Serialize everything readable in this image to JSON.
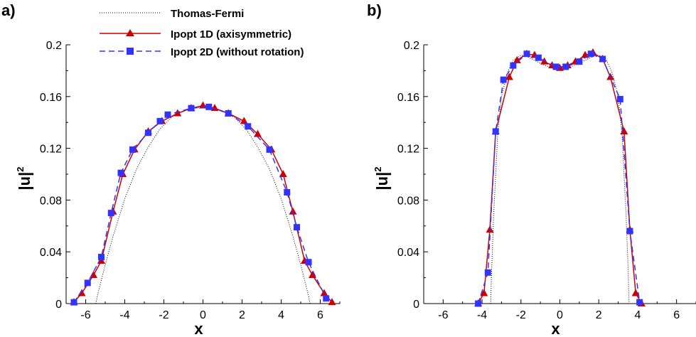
{
  "legend": [
    {
      "label": "Thomas-Fermi",
      "color": "#000000",
      "style": "dotted",
      "marker": "none"
    },
    {
      "label": "Ipopt 1D (axisymmetric)",
      "color": "#cc0000",
      "style": "solid",
      "marker": "triangle"
    },
    {
      "label": "Ipopt 2D (without rotation)",
      "color": "#3333ff",
      "style": "dashed",
      "marker": "square"
    }
  ],
  "chart_data": [
    {
      "type": "line",
      "panel_label": "a)",
      "xlabel": "x",
      "ylabel": "|u|",
      "ylabel_superscript": "2",
      "xlim": [
        -7,
        7
      ],
      "ylim": [
        0,
        0.2
      ],
      "xticks": [
        -6,
        -4,
        -2,
        0,
        2,
        4,
        6
      ],
      "yticks": [
        0,
        0.04,
        0.08,
        0.12,
        0.16,
        0.2
      ],
      "ytick_labels": [
        "0",
        "0.04",
        "0.08",
        "0.12",
        "0.16",
        "0.2"
      ],
      "series": [
        {
          "name": "Thomas-Fermi",
          "x": [
            -5.48,
            -5.4,
            -5.2,
            -5.0,
            -4.6,
            -4.0,
            -3.4,
            -2.8,
            -2.2,
            -1.6,
            -1.0,
            -0.5,
            0,
            0.5,
            1.0,
            1.6,
            2.2,
            2.8,
            3.4,
            4.0,
            4.6,
            5.0,
            5.2,
            5.4,
            5.48
          ],
          "y": [
            0,
            0.006,
            0.018,
            0.03,
            0.052,
            0.081,
            0.104,
            0.121,
            0.135,
            0.144,
            0.149,
            0.151,
            0.152,
            0.151,
            0.149,
            0.144,
            0.135,
            0.121,
            0.104,
            0.081,
            0.052,
            0.03,
            0.018,
            0.006,
            0
          ]
        },
        {
          "name": "Ipopt 1D (axisymmetric)",
          "x": [
            -6.6,
            -6.2,
            -5.6,
            -5.2,
            -4.6,
            -4.1,
            -3.5,
            -2.8,
            -2.1,
            -1.3,
            -0.6,
            0,
            0.6,
            1.3,
            2.1,
            2.8,
            3.5,
            4.1,
            4.6,
            5.2,
            5.6,
            6.2,
            6.6
          ],
          "y": [
            0.001,
            0.008,
            0.022,
            0.033,
            0.071,
            0.1,
            0.119,
            0.133,
            0.141,
            0.147,
            0.151,
            0.153,
            0.151,
            0.147,
            0.141,
            0.131,
            0.119,
            0.1,
            0.071,
            0.033,
            0.022,
            0.008,
            0.001
          ]
        },
        {
          "name": "Ipopt 2D (without rotation)",
          "x": [
            -6.6,
            -5.9,
            -5.2,
            -4.7,
            -4.2,
            -3.6,
            -2.8,
            -2.2,
            -1.8,
            -0.6,
            0.3,
            1.3,
            2.3,
            3.4,
            4.3,
            4.8,
            5.4,
            6.3
          ],
          "y": [
            0.001,
            0.016,
            0.036,
            0.07,
            0.101,
            0.119,
            0.132,
            0.141,
            0.146,
            0.151,
            0.152,
            0.147,
            0.137,
            0.119,
            0.086,
            0.059,
            0.032,
            0.004
          ]
        }
      ]
    },
    {
      "type": "line",
      "panel_label": "b)",
      "xlabel": "x",
      "ylabel": "|u|",
      "ylabel_superscript": "2",
      "xlim": [
        -7,
        7
      ],
      "ylim": [
        0,
        0.2
      ],
      "xticks": [
        -6,
        -4,
        -2,
        0,
        2,
        4,
        6
      ],
      "yticks": [
        0,
        0.04,
        0.08,
        0.12,
        0.16,
        0.2
      ],
      "ytick_labels": [
        "0",
        "0.04",
        "0.08",
        "0.12",
        "0.16",
        "0.2"
      ],
      "series": [
        {
          "name": "Thomas-Fermi",
          "x": [
            -3.56,
            -3.5,
            -3.4,
            -3.2,
            -3.0,
            -2.7,
            -2.4,
            -2.0,
            -1.7,
            -1.3,
            -0.9,
            -0.4,
            0,
            0.4,
            0.9,
            1.3,
            1.7,
            2.0,
            2.4,
            2.7,
            3.0,
            3.2,
            3.4,
            3.5,
            3.56
          ],
          "y": [
            0,
            0.03,
            0.07,
            0.13,
            0.16,
            0.178,
            0.188,
            0.192,
            0.191,
            0.188,
            0.185,
            0.182,
            0.181,
            0.182,
            0.185,
            0.188,
            0.191,
            0.192,
            0.188,
            0.178,
            0.16,
            0.13,
            0.07,
            0.03,
            0
          ]
        },
        {
          "name": "Ipopt 1D (axisymmetric)",
          "x": [
            -4.2,
            -3.9,
            -3.6,
            -3.3,
            -2.6,
            -2.2,
            -1.7,
            -1.3,
            -0.8,
            -0.4,
            0,
            0.4,
            0.8,
            1.3,
            1.7,
            2.2,
            2.6,
            3.3,
            3.6,
            3.9,
            4.2
          ],
          "y": [
            0.0,
            0.008,
            0.057,
            0.133,
            0.175,
            0.188,
            0.193,
            0.192,
            0.187,
            0.184,
            0.182,
            0.184,
            0.187,
            0.192,
            0.194,
            0.189,
            0.175,
            0.133,
            0.057,
            0.008,
            0.0
          ]
        },
        {
          "name": "Ipopt 2D (without rotation)",
          "x": [
            -4.2,
            -3.7,
            -3.3,
            -2.9,
            -2.4,
            -1.7,
            -1.1,
            -0.2,
            0.3,
            1.0,
            1.6,
            2.2,
            3.1,
            3.6,
            4.1
          ],
          "y": [
            0.0,
            0.024,
            0.133,
            0.173,
            0.184,
            0.193,
            0.19,
            0.183,
            0.183,
            0.187,
            0.193,
            0.189,
            0.158,
            0.056,
            0.001
          ]
        }
      ]
    }
  ]
}
